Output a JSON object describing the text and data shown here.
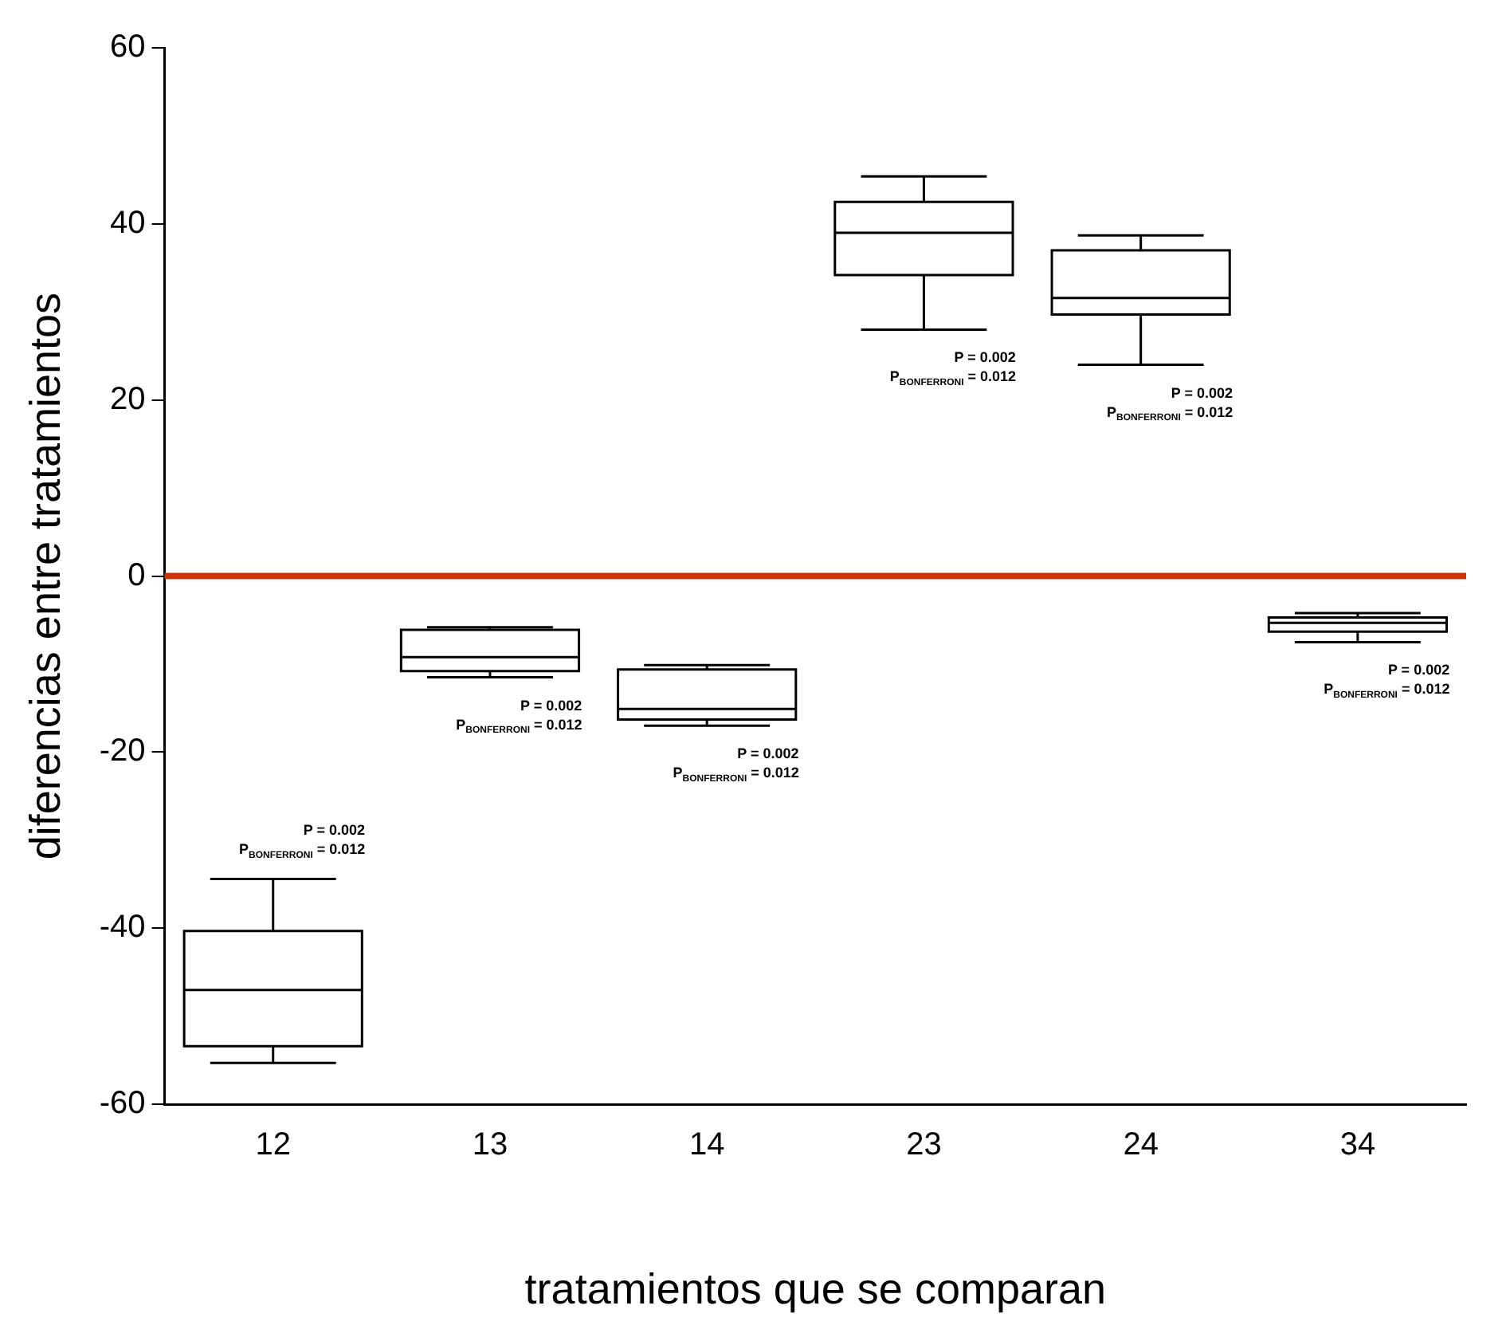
{
  "chart_data": {
    "type": "box",
    "xlabel": "tratamientos que se comparan",
    "ylabel": "diferencias entre tratamientos",
    "categories": [
      "12",
      "13",
      "14",
      "23",
      "24",
      "34"
    ],
    "boxes": [
      {
        "low": -55.3,
        "q1": -53.4,
        "median": -47.0,
        "q3": -40.3,
        "high": -34.4
      },
      {
        "low": -11.5,
        "q1": -10.8,
        "median": -9.2,
        "q3": -6.1,
        "high": -5.8
      },
      {
        "low": -17.0,
        "q1": -16.3,
        "median": -15.1,
        "q3": -10.6,
        "high": -10.1
      },
      {
        "low": 28.0,
        "q1": 34.2,
        "median": 39.0,
        "q3": 42.5,
        "high": 45.4
      },
      {
        "low": 24.0,
        "q1": 29.7,
        "median": 31.6,
        "q3": 37.0,
        "high": 38.7
      },
      {
        "low": -7.5,
        "q1": -6.3,
        "median": -5.3,
        "q3": -4.7,
        "high": -4.2
      }
    ],
    "ylim": [
      -60,
      60
    ],
    "yticks": [
      -60,
      -40,
      -20,
      0,
      20,
      40,
      60
    ],
    "ref_lines": [
      {
        "axis": "y",
        "value": 0,
        "color": "#cc3300"
      }
    ],
    "annotations": [
      "P = 0.002",
      "P$_{BONFERRONI}$ = 0.012",
      "P = 0.002",
      "P$_{BONFERRONI}$ = 0.012",
      "P = 0.002",
      "P$_{BONFERRONI}$ = 0.012",
      "P = 0.002",
      "P$_{BONFERRONI}$ = 0.012",
      "P = 0.002",
      "P$_{BONFERRONI}$ = 0.012",
      "P = 0.002",
      "P$_{BONFERRONI}$ = 0.012"
    ],
    "grid": false,
    "legend": false
  }
}
